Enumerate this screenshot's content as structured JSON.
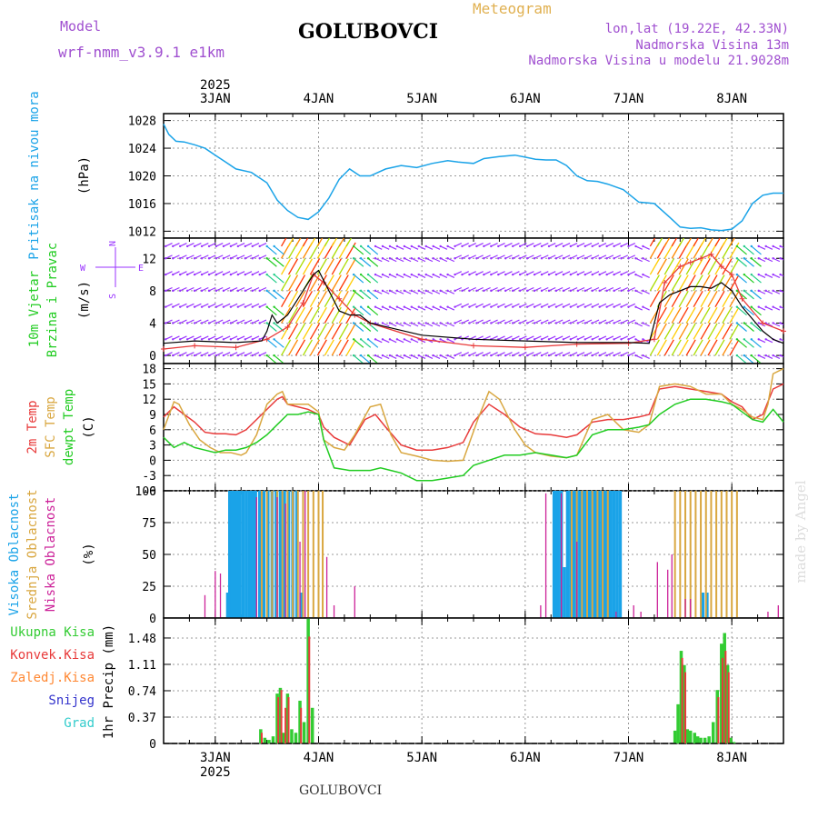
{
  "header": {
    "model_label": "Model",
    "model_name": "wrf-nmm_v3.9.1 e1km",
    "station": "GOLUBOVCI",
    "title": "Meteogram",
    "coords": "lon,lat (19.22E, 42.33N)",
    "altitude": "Nadmorska Visina 13m",
    "model_altitude": "Nadmorska Visina u modelu 21.9028m"
  },
  "footer": {
    "station": "GOLUBOVCI",
    "credit": "made by Angel"
  },
  "colors": {
    "pressure": "#1aa3e8",
    "wind_green": "#22cc22",
    "wind_purple": "#9933ff",
    "temp2m": "#e83a3a",
    "sfc": "#d9a740",
    "dew": "#22cc22",
    "high": "#1aa3e8",
    "mid": "#d9a740",
    "low": "#cc2299",
    "total": "#33cc33",
    "conv": "#e83a3a",
    "frozen": "#ff8833",
    "snow": "#3333cc",
    "hail": "#33cccc",
    "header_purple": "#a050d0",
    "header_gold": "#e0b050"
  },
  "chart_data": [
    {
      "type": "line",
      "panel": "pressure",
      "ylabel": [
        "Pritisak na nivou mora",
        "(hPa)"
      ],
      "yticks": [
        1012,
        1016,
        1020,
        1024,
        1028
      ],
      "ylim": [
        1011,
        1029
      ],
      "xlim": [
        2.5,
        8.5
      ],
      "x_tick_labels_top": [
        "3JAN",
        "4JAN",
        "5JAN",
        "6JAN",
        "7JAN",
        "8JAN"
      ],
      "x_tick_labels_bottom": [
        "3JAN",
        "4JAN",
        "5JAN",
        "6JAN",
        "7JAN",
        "8JAN"
      ],
      "year_top": "2025",
      "year_bottom": "2025",
      "series": [
        {
          "x": [
            2.5,
            2.55,
            2.62,
            2.7,
            2.8,
            2.9,
            3.0,
            3.1,
            3.2,
            3.35,
            3.5,
            3.6,
            3.7,
            3.8,
            3.9,
            4.0,
            4.1,
            4.2,
            4.3,
            4.4,
            4.5,
            4.65,
            4.8,
            4.95,
            5.1,
            5.25,
            5.35,
            5.5,
            5.6,
            5.75,
            5.9,
            6.0,
            6.1,
            6.2,
            6.3,
            6.4,
            6.5,
            6.6,
            6.7,
            6.8,
            6.95,
            7.1,
            7.25,
            7.4,
            7.5,
            7.6,
            7.7,
            7.8,
            7.9,
            8.0,
            8.1,
            8.2,
            8.3,
            8.4,
            8.5
          ],
          "y": [
            1027.5,
            1026,
            1025,
            1024.9,
            1024.5,
            1024,
            1023,
            1022,
            1021,
            1020.5,
            1019,
            1016.5,
            1015,
            1014,
            1013.7,
            1014.8,
            1016.8,
            1019.5,
            1021,
            1020,
            1020,
            1021,
            1021.5,
            1021.2,
            1021.8,
            1022.2,
            1022,
            1021.8,
            1022.5,
            1022.8,
            1023,
            1022.7,
            1022.4,
            1022.3,
            1022.3,
            1021.5,
            1020,
            1019.3,
            1019.2,
            1018.8,
            1018,
            1016.2,
            1016,
            1014,
            1012.6,
            1012.4,
            1012.5,
            1012.2,
            1012.1,
            1012.3,
            1013.5,
            1016,
            1017.2,
            1017.5,
            1017.5
          ]
        }
      ]
    },
    {
      "type": "line",
      "panel": "wind",
      "ylabel": [
        "10m Vjetar",
        "Brzina i Pravac",
        "(m/s)"
      ],
      "compass_labels": [
        "N",
        "W",
        "E",
        "S"
      ],
      "yticks": [
        0,
        4,
        8,
        12
      ],
      "ylim": [
        -1,
        14.5
      ],
      "xlim": [
        2.5,
        8.5
      ],
      "series": [
        {
          "name": "wind speed",
          "x": [
            2.5,
            2.8,
            3.2,
            3.45,
            3.5,
            3.55,
            3.6,
            3.7,
            3.8,
            3.9,
            3.95,
            4.0,
            4.1,
            4.2,
            4.3,
            4.4,
            4.5,
            5.0,
            5.5,
            6.0,
            6.5,
            7.0,
            7.2,
            7.3,
            7.4,
            7.5,
            7.6,
            7.7,
            7.8,
            7.9,
            8.0,
            8.1,
            8.2,
            8.3,
            8.4,
            8.5
          ],
          "y": [
            1.5,
            1.8,
            1.6,
            1.8,
            3,
            5,
            4,
            5,
            7,
            9,
            10,
            10.5,
            8,
            5.5,
            5,
            5,
            4,
            2.5,
            2,
            1.8,
            1.6,
            1.6,
            1.5,
            6.5,
            7.5,
            8,
            8.5,
            8.5,
            8.3,
            9,
            8,
            6,
            4.5,
            3,
            2,
            1.5
          ]
        },
        {
          "name": "wind gust",
          "x": [
            2.5,
            2.8,
            3.2,
            3.5,
            3.7,
            3.85,
            3.95,
            4.05,
            4.2,
            4.35,
            4.5,
            5.0,
            5.5,
            6.0,
            6.5,
            7.0,
            7.25,
            7.35,
            7.5,
            7.6,
            7.7,
            7.8,
            7.9,
            8.0,
            8.1,
            8.3,
            8.5
          ],
          "y": [
            0.8,
            1.2,
            1.0,
            2,
            3.5,
            6.5,
            10,
            9,
            7,
            5,
            4,
            2,
            1.2,
            1.0,
            1.4,
            1.5,
            2,
            9,
            11,
            11.5,
            12,
            12.5,
            11,
            10,
            7,
            4,
            3
          ]
        }
      ]
    },
    {
      "type": "line",
      "panel": "temperature",
      "ylabel": [
        "2m Temp",
        "SFC Temp",
        "dewpt Temp",
        "(C)"
      ],
      "yticks": [
        -6,
        -3,
        0,
        3,
        6,
        9,
        12,
        15,
        18
      ],
      "ylim": [
        -6,
        19
      ],
      "xlim": [
        2.5,
        8.5
      ],
      "series": [
        {
          "name": "2m Temp",
          "x": [
            2.5,
            2.6,
            2.7,
            2.8,
            2.9,
            3.0,
            3.1,
            3.2,
            3.3,
            3.4,
            3.5,
            3.6,
            3.65,
            3.7,
            3.8,
            3.9,
            4.0,
            4.05,
            4.15,
            4.3,
            4.45,
            4.55,
            4.65,
            4.8,
            4.95,
            5.1,
            5.25,
            5.4,
            5.5,
            5.65,
            5.8,
            5.95,
            6.1,
            6.25,
            6.4,
            6.5,
            6.65,
            6.8,
            6.95,
            7.1,
            7.2,
            7.3,
            7.45,
            7.6,
            7.75,
            7.9,
            8.0,
            8.1,
            8.2,
            8.3,
            8.4,
            8.5
          ],
          "y": [
            8.5,
            10.5,
            9,
            7.5,
            5.5,
            5.2,
            5.2,
            5,
            6,
            8,
            10,
            12,
            12.5,
            11,
            10.5,
            10,
            9,
            6.5,
            4.5,
            3,
            8,
            9,
            6.5,
            3,
            2,
            2,
            2.5,
            3.5,
            7.5,
            11,
            9,
            6.5,
            5.2,
            5,
            4.5,
            5,
            7.5,
            8,
            8,
            8.5,
            9,
            14,
            14.5,
            14,
            13.5,
            13,
            11.5,
            10.5,
            8,
            9,
            14,
            15
          ]
        },
        {
          "name": "SFC Temp",
          "x": [
            2.5,
            2.6,
            2.65,
            2.75,
            2.85,
            2.95,
            3.05,
            3.15,
            3.25,
            3.3,
            3.4,
            3.5,
            3.6,
            3.65,
            3.7,
            3.8,
            3.9,
            4.0,
            4.05,
            4.15,
            4.25,
            4.35,
            4.5,
            4.6,
            4.7,
            4.8,
            4.95,
            5.1,
            5.25,
            5.4,
            5.55,
            5.65,
            5.75,
            5.9,
            6.0,
            6.1,
            6.25,
            6.4,
            6.5,
            6.65,
            6.8,
            6.95,
            7.1,
            7.2,
            7.3,
            7.45,
            7.6,
            7.75,
            7.9,
            8.0,
            8.1,
            8.2,
            8.3,
            8.35,
            8.4,
            8.5
          ],
          "y": [
            6,
            11.5,
            11,
            7,
            4,
            2.5,
            1.5,
            1.5,
            1,
            1.5,
            5,
            11,
            13,
            13.5,
            11,
            11,
            11,
            9.5,
            4,
            2.5,
            2,
            5,
            10.5,
            11,
            5,
            1.5,
            0.8,
            0,
            -0.2,
            0,
            8.5,
            13.5,
            12,
            6,
            3,
            1.5,
            0.8,
            0.5,
            1,
            8,
            9,
            6,
            5.5,
            7,
            14.5,
            15,
            14.5,
            13,
            13,
            11,
            10,
            8.5,
            8,
            11,
            17,
            18
          ]
        },
        {
          "name": "dewpt Temp",
          "x": [
            2.5,
            2.6,
            2.7,
            2.8,
            2.9,
            3.0,
            3.1,
            3.2,
            3.3,
            3.4,
            3.5,
            3.6,
            3.7,
            3.8,
            3.9,
            4.0,
            4.05,
            4.15,
            4.3,
            4.5,
            4.6,
            4.7,
            4.8,
            4.95,
            5.1,
            5.25,
            5.4,
            5.5,
            5.65,
            5.8,
            5.95,
            6.1,
            6.25,
            6.4,
            6.5,
            6.65,
            6.8,
            6.95,
            7.1,
            7.2,
            7.3,
            7.45,
            7.6,
            7.75,
            7.9,
            8.0,
            8.1,
            8.2,
            8.3,
            8.4,
            8.5
          ],
          "y": [
            4.5,
            2.5,
            3.5,
            2.5,
            2,
            1.5,
            2,
            2,
            2.5,
            3.5,
            5,
            7,
            9,
            9,
            9.5,
            9,
            4,
            -1.5,
            -2,
            -2,
            -1.5,
            -2,
            -2.5,
            -4,
            -4,
            -3.5,
            -3,
            -1,
            0,
            1,
            1,
            1.5,
            1,
            0.5,
            1,
            5,
            6,
            6,
            6.5,
            7,
            9,
            11,
            12,
            12,
            11.5,
            11,
            9.5,
            8,
            7.5,
            10,
            7.5
          ]
        }
      ]
    },
    {
      "type": "bar",
      "panel": "clouds",
      "ylabel": [
        "Visoka Oblacnost",
        "Srednja Oblacnost",
        "Niska Oblacnost",
        "(%)"
      ],
      "yticks": [
        0,
        25,
        50,
        75,
        100
      ],
      "ylim": [
        0,
        100
      ],
      "xlim": [
        2.5,
        8.5
      ],
      "series": [
        {
          "name": "Visoka Oblacnost",
          "x": [
            3.12,
            3.14,
            3.16,
            3.18,
            3.2,
            3.22,
            3.24,
            3.27,
            3.3,
            3.33,
            3.36,
            3.39,
            3.43,
            3.47,
            3.51,
            3.55,
            3.59,
            3.63,
            3.67,
            3.71,
            3.75,
            3.79,
            3.83,
            6.28,
            6.3,
            6.32,
            6.35,
            6.38,
            6.41,
            6.44,
            6.47,
            6.5,
            6.53,
            6.56,
            6.59,
            6.62,
            6.65,
            6.68,
            6.71,
            6.74,
            6.77,
            6.8,
            6.83,
            6.86,
            6.89,
            6.92,
            7.72,
            7.76
          ],
          "y": [
            20,
            100,
            100,
            100,
            100,
            100,
            100,
            100,
            100,
            100,
            100,
            100,
            100,
            100,
            100,
            100,
            100,
            100,
            100,
            100,
            100,
            100,
            20,
            100,
            100,
            100,
            100,
            40,
            100,
            100,
            100,
            100,
            100,
            100,
            100,
            100,
            100,
            100,
            100,
            100,
            100,
            100,
            100,
            100,
            100,
            100,
            20,
            20
          ]
        },
        {
          "name": "Srednja Oblacnost",
          "x": [
            3.45,
            3.5,
            3.55,
            3.6,
            3.65,
            3.7,
            3.75,
            3.8,
            3.85,
            3.9,
            3.95,
            4.0,
            4.04,
            6.45,
            6.5,
            6.55,
            6.6,
            6.65,
            6.7,
            6.75,
            6.8,
            7.45,
            7.5,
            7.55,
            7.6,
            7.65,
            7.7,
            7.75,
            7.8,
            7.85,
            7.9,
            7.95,
            8.0,
            8.05
          ],
          "y": [
            100,
            100,
            100,
            100,
            100,
            100,
            100,
            100,
            100,
            100,
            100,
            100,
            100,
            100,
            100,
            100,
            100,
            100,
            100,
            100,
            100,
            100,
            100,
            100,
            100,
            100,
            100,
            100,
            100,
            100,
            100,
            100,
            100,
            100
          ]
        },
        {
          "name": "Niska Oblacnost",
          "x": [
            2.9,
            3.0,
            3.05,
            3.4,
            3.6,
            3.68,
            3.82,
            3.87,
            4.08,
            4.15,
            4.35,
            6.15,
            6.2,
            6.35,
            6.5,
            6.88,
            7.05,
            7.12,
            7.28,
            7.38,
            7.42,
            7.55,
            7.6,
            8.35,
            8.45
          ],
          "y": [
            18,
            37,
            35,
            95,
            95,
            90,
            60,
            100,
            48,
            10,
            25,
            10,
            98,
            98,
            60,
            5,
            10,
            5,
            44,
            38,
            50,
            15,
            15,
            5,
            10
          ]
        }
      ]
    },
    {
      "type": "bar",
      "panel": "precipitation",
      "ylabel": [
        "1hr Precip (mm)"
      ],
      "legend": [
        "Ukupna Kisa",
        "Konvek.Kisa",
        "Zaledj.Kisa",
        "Snijeg",
        "Grad"
      ],
      "yticks": [
        0,
        0.37,
        0.74,
        1.11,
        1.48
      ],
      "ylim": [
        0,
        1.76
      ],
      "xlim": [
        2.5,
        8.5
      ],
      "series": [
        {
          "name": "Ukupna Kisa",
          "x": [
            3.44,
            3.48,
            3.52,
            3.56,
            3.6,
            3.63,
            3.66,
            3.7,
            3.74,
            3.78,
            3.82,
            3.86,
            3.9,
            3.94,
            7.45,
            7.48,
            7.51,
            7.54,
            7.57,
            7.6,
            7.64,
            7.67,
            7.7,
            7.74,
            7.78,
            7.82,
            7.86,
            7.9,
            7.93,
            7.96,
            7.99,
            8.02
          ],
          "y": [
            0.2,
            0.08,
            0.05,
            0.1,
            0.7,
            0.78,
            0.15,
            0.7,
            0.2,
            0.15,
            0.6,
            0.3,
            1.75,
            0.5,
            0.18,
            0.55,
            1.3,
            1.1,
            0.2,
            0.18,
            0.15,
            0.1,
            0.08,
            0.08,
            0.1,
            0.3,
            0.75,
            1.4,
            1.55,
            1.1,
            0.08,
            0.02
          ]
        },
        {
          "name": "Konvek.Kisa",
          "x": [
            3.45,
            3.61,
            3.64,
            3.68,
            3.71,
            3.83,
            3.91,
            7.52,
            7.55,
            7.87,
            7.91,
            7.94,
            7.97
          ],
          "y": [
            0.15,
            0.65,
            0.75,
            0.5,
            0.65,
            0.5,
            1.5,
            1.2,
            1.0,
            0.65,
            1.2,
            1.3,
            1.0
          ]
        }
      ]
    }
  ]
}
